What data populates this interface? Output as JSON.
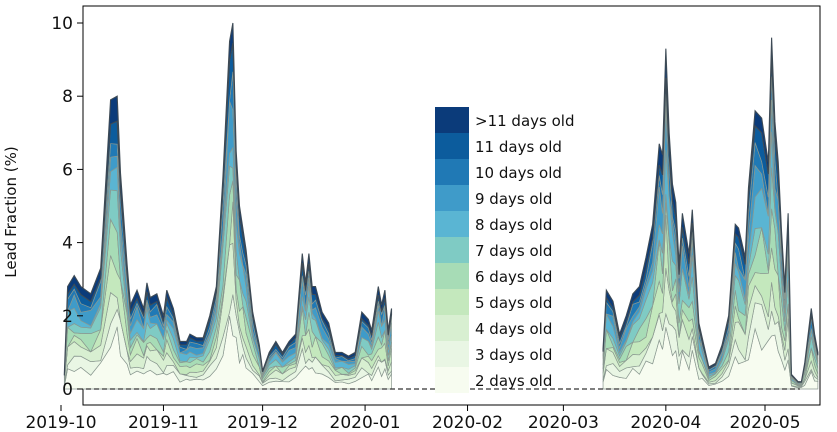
{
  "chart_data": {
    "type": "area",
    "title": "",
    "xlabel": "",
    "ylabel": "Lead Fraction (%)",
    "ylim": [
      0,
      10.5
    ],
    "x_ticks": [
      "2019-10",
      "2019-11",
      "2019-12",
      "2020-01",
      "2020-02",
      "2020-03",
      "2020-04",
      "2020-05"
    ],
    "y_ticks": [
      0,
      2,
      4,
      6,
      8,
      10
    ],
    "legend_position": "center",
    "baseline_style": "dashed",
    "grid": false,
    "colors": [
      "#f7fcf0",
      "#e9f6e4",
      "#d8efd1",
      "#c4e8bd",
      "#a7dcb6",
      "#7fcbc4",
      "#5ab5d3",
      "#3f9bc9",
      "#2079b5",
      "#0c5c9d",
      "#0b3b7a"
    ],
    "series": [
      {
        "name": "2 days old"
      },
      {
        "name": "3 days old"
      },
      {
        "name": "4 days old"
      },
      {
        "name": "5 days old"
      },
      {
        "name": "6 days old"
      },
      {
        "name": "7 days old"
      },
      {
        "name": "8 days old"
      },
      {
        "name": "9 days old"
      },
      {
        "name": "10 days old"
      },
      {
        "name": "11 days old"
      },
      {
        "name": ">11 days old"
      }
    ],
    "segments": [
      {
        "x": [
          "2019-10-02",
          "2019-10-03",
          "2019-10-05",
          "2019-10-07",
          "2019-10-10",
          "2019-10-13",
          "2019-10-16",
          "2019-10-18",
          "2019-10-19",
          "2019-10-21",
          "2019-10-22",
          "2019-10-24",
          "2019-10-26",
          "2019-10-27",
          "2019-10-28",
          "2019-10-30",
          "2019-11-01",
          "2019-11-02",
          "2019-11-04",
          "2019-11-06",
          "2019-11-08",
          "2019-11-09",
          "2019-11-11",
          "2019-11-13",
          "2019-11-15",
          "2019-11-17",
          "2019-11-19",
          "2019-11-21",
          "2019-11-22",
          "2019-11-23",
          "2019-11-24",
          "2019-11-25",
          "2019-11-26",
          "2019-11-28",
          "2019-11-30",
          "2019-12-01",
          "2019-12-03",
          "2019-12-05",
          "2019-12-07",
          "2019-12-09",
          "2019-12-11",
          "2019-12-13",
          "2019-12-14",
          "2019-12-15",
          "2019-12-16",
          "2019-12-17",
          "2019-12-19",
          "2019-12-21",
          "2019-12-23",
          "2019-12-25",
          "2019-12-27",
          "2019-12-29",
          "2019-12-31",
          "2020-01-02",
          "2020-01-03",
          "2020-01-05",
          "2020-01-06",
          "2020-01-07",
          "2020-01-08",
          "2020-01-09"
        ],
        "total": [
          0.4,
          2.8,
          3.1,
          2.8,
          2.6,
          3.3,
          7.9,
          8.0,
          5.9,
          3.4,
          2.3,
          2.7,
          2.2,
          2.9,
          2.5,
          2.6,
          2.0,
          2.7,
          2.2,
          1.3,
          1.3,
          1.5,
          1.4,
          1.4,
          2.0,
          2.8,
          5.8,
          9.5,
          10.0,
          6.5,
          5.0,
          4.4,
          3.8,
          2.1,
          1.2,
          0.5,
          1.0,
          1.3,
          1.0,
          1.3,
          1.5,
          3.7,
          2.9,
          3.7,
          2.8,
          2.8,
          2.1,
          1.8,
          1.0,
          1.0,
          0.9,
          1.0,
          2.1,
          1.9,
          1.6,
          2.8,
          2.3,
          2.7,
          1.6,
          2.2
        ]
      },
      {
        "x": [
          "2020-03-13",
          "2020-03-14",
          "2020-03-16",
          "2020-03-18",
          "2020-03-20",
          "2020-03-22",
          "2020-03-24",
          "2020-03-26",
          "2020-03-28",
          "2020-03-30",
          "2020-03-31",
          "2020-04-01",
          "2020-04-02",
          "2020-04-03",
          "2020-04-04",
          "2020-04-05",
          "2020-04-06",
          "2020-04-08",
          "2020-04-09",
          "2020-04-11",
          "2020-04-12",
          "2020-04-14",
          "2020-04-16",
          "2020-04-18",
          "2020-04-20",
          "2020-04-22",
          "2020-04-23",
          "2020-04-25",
          "2020-04-26",
          "2020-04-28",
          "2020-04-30",
          "2020-05-02",
          "2020-05-03",
          "2020-05-04",
          "2020-05-05",
          "2020-05-06",
          "2020-05-07",
          "2020-05-08",
          "2020-05-09",
          "2020-05-11",
          "2020-05-12",
          "2020-05-13",
          "2020-05-15",
          "2020-05-16",
          "2020-05-17"
        ],
        "total": [
          1.1,
          2.7,
          2.4,
          1.5,
          2.0,
          2.6,
          2.8,
          3.6,
          4.5,
          6.7,
          6.4,
          9.3,
          7.0,
          5.6,
          5.1,
          3.4,
          4.8,
          3.7,
          4.9,
          1.8,
          1.4,
          0.6,
          0.7,
          1.2,
          2.0,
          4.5,
          4.4,
          3.6,
          5.5,
          7.6,
          7.4,
          6.2,
          9.6,
          7.3,
          6.2,
          4.3,
          2.8,
          4.8,
          0.4,
          0.2,
          0.2,
          0.7,
          2.2,
          1.5,
          1.0
        ]
      }
    ]
  }
}
